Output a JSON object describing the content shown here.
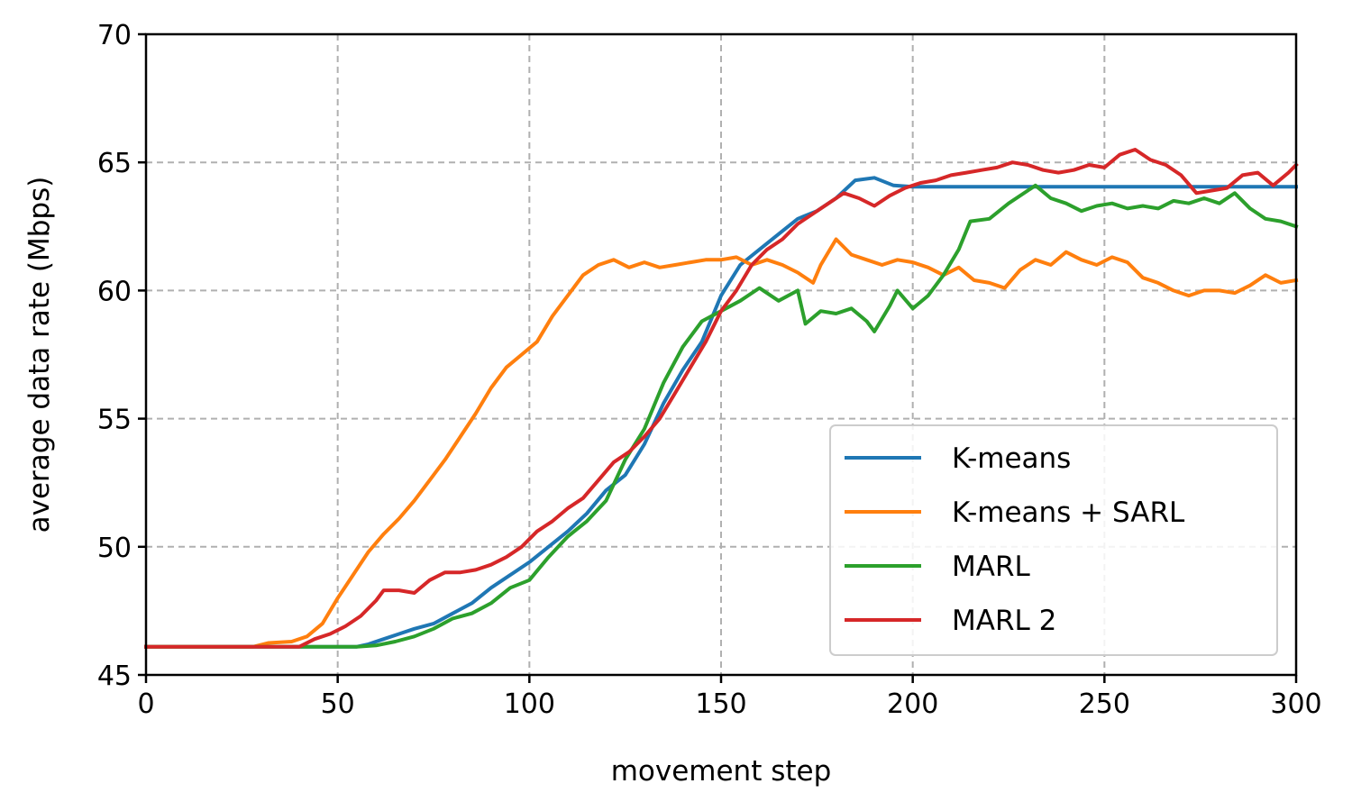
{
  "chart_data": {
    "type": "line",
    "title": "",
    "xlabel": "movement step",
    "ylabel": "average data rate (Mbps)",
    "xlim": [
      0,
      300
    ],
    "ylim": [
      45,
      70
    ],
    "xticks": [
      0,
      50,
      100,
      150,
      200,
      250,
      300
    ],
    "yticks": [
      45,
      50,
      55,
      60,
      65,
      70
    ],
    "grid": true,
    "legend_position": "lower-right",
    "series": [
      {
        "name": "K-means",
        "color": "#1f77b4",
        "points": [
          [
            0,
            46.1
          ],
          [
            40,
            46.1
          ],
          [
            55,
            46.1
          ],
          [
            58,
            46.2
          ],
          [
            62,
            46.4
          ],
          [
            66,
            46.6
          ],
          [
            70,
            46.8
          ],
          [
            75,
            47.0
          ],
          [
            80,
            47.4
          ],
          [
            85,
            47.8
          ],
          [
            90,
            48.4
          ],
          [
            95,
            48.9
          ],
          [
            100,
            49.4
          ],
          [
            105,
            50.0
          ],
          [
            110,
            50.6
          ],
          [
            115,
            51.3
          ],
          [
            120,
            52.2
          ],
          [
            125,
            52.8
          ],
          [
            130,
            54.0
          ],
          [
            135,
            55.6
          ],
          [
            140,
            56.9
          ],
          [
            145,
            58.0
          ],
          [
            150,
            59.8
          ],
          [
            155,
            61.0
          ],
          [
            160,
            61.6
          ],
          [
            165,
            62.2
          ],
          [
            170,
            62.8
          ],
          [
            175,
            63.1
          ],
          [
            180,
            63.6
          ],
          [
            185,
            64.3
          ],
          [
            190,
            64.4
          ],
          [
            195,
            64.1
          ],
          [
            200,
            64.05
          ],
          [
            300,
            64.05
          ]
        ]
      },
      {
        "name": "K-means + SARL",
        "color": "#ff7f0e",
        "points": [
          [
            0,
            46.1
          ],
          [
            28,
            46.1
          ],
          [
            32,
            46.25
          ],
          [
            38,
            46.3
          ],
          [
            42,
            46.5
          ],
          [
            46,
            47.0
          ],
          [
            50,
            48.0
          ],
          [
            54,
            48.9
          ],
          [
            58,
            49.8
          ],
          [
            62,
            50.5
          ],
          [
            66,
            51.1
          ],
          [
            70,
            51.8
          ],
          [
            74,
            52.6
          ],
          [
            78,
            53.4
          ],
          [
            82,
            54.3
          ],
          [
            86,
            55.2
          ],
          [
            90,
            56.2
          ],
          [
            94,
            57.0
          ],
          [
            98,
            57.5
          ],
          [
            102,
            58.0
          ],
          [
            106,
            59.0
          ],
          [
            110,
            59.8
          ],
          [
            114,
            60.6
          ],
          [
            118,
            61.0
          ],
          [
            122,
            61.2
          ],
          [
            126,
            60.9
          ],
          [
            130,
            61.1
          ],
          [
            134,
            60.9
          ],
          [
            138,
            61.0
          ],
          [
            142,
            61.1
          ],
          [
            146,
            61.2
          ],
          [
            150,
            61.2
          ],
          [
            154,
            61.3
          ],
          [
            158,
            61.0
          ],
          [
            162,
            61.2
          ],
          [
            166,
            61.0
          ],
          [
            170,
            60.7
          ],
          [
            174,
            60.3
          ],
          [
            176,
            61.0
          ],
          [
            180,
            62.0
          ],
          [
            184,
            61.4
          ],
          [
            188,
            61.2
          ],
          [
            192,
            61.0
          ],
          [
            196,
            61.2
          ],
          [
            200,
            61.1
          ],
          [
            204,
            60.9
          ],
          [
            208,
            60.6
          ],
          [
            212,
            60.9
          ],
          [
            216,
            60.4
          ],
          [
            220,
            60.3
          ],
          [
            224,
            60.1
          ],
          [
            228,
            60.8
          ],
          [
            232,
            61.2
          ],
          [
            236,
            61.0
          ],
          [
            240,
            61.5
          ],
          [
            244,
            61.2
          ],
          [
            248,
            61.0
          ],
          [
            252,
            61.3
          ],
          [
            256,
            61.1
          ],
          [
            260,
            60.5
          ],
          [
            264,
            60.3
          ],
          [
            268,
            60.0
          ],
          [
            272,
            59.8
          ],
          [
            276,
            60.0
          ],
          [
            280,
            60.0
          ],
          [
            284,
            59.9
          ],
          [
            288,
            60.2
          ],
          [
            292,
            60.6
          ],
          [
            296,
            60.3
          ],
          [
            300,
            60.4
          ]
        ]
      },
      {
        "name": "MARL",
        "color": "#2ca02c",
        "points": [
          [
            0,
            46.1
          ],
          [
            55,
            46.1
          ],
          [
            60,
            46.15
          ],
          [
            65,
            46.3
          ],
          [
            70,
            46.5
          ],
          [
            75,
            46.8
          ],
          [
            80,
            47.2
          ],
          [
            85,
            47.4
          ],
          [
            90,
            47.8
          ],
          [
            95,
            48.4
          ],
          [
            100,
            48.7
          ],
          [
            105,
            49.6
          ],
          [
            110,
            50.4
          ],
          [
            115,
            51.0
          ],
          [
            120,
            51.8
          ],
          [
            125,
            53.4
          ],
          [
            130,
            54.6
          ],
          [
            135,
            56.4
          ],
          [
            140,
            57.8
          ],
          [
            145,
            58.8
          ],
          [
            150,
            59.2
          ],
          [
            155,
            59.6
          ],
          [
            160,
            60.1
          ],
          [
            165,
            59.6
          ],
          [
            170,
            60.0
          ],
          [
            172,
            58.7
          ],
          [
            176,
            59.2
          ],
          [
            180,
            59.1
          ],
          [
            184,
            59.3
          ],
          [
            188,
            58.8
          ],
          [
            190,
            58.4
          ],
          [
            194,
            59.4
          ],
          [
            196,
            60.0
          ],
          [
            200,
            59.3
          ],
          [
            204,
            59.8
          ],
          [
            208,
            60.6
          ],
          [
            212,
            61.6
          ],
          [
            215,
            62.7
          ],
          [
            220,
            62.8
          ],
          [
            225,
            63.4
          ],
          [
            230,
            63.9
          ],
          [
            232,
            64.1
          ],
          [
            236,
            63.6
          ],
          [
            240,
            63.4
          ],
          [
            244,
            63.1
          ],
          [
            248,
            63.3
          ],
          [
            252,
            63.4
          ],
          [
            256,
            63.2
          ],
          [
            260,
            63.3
          ],
          [
            264,
            63.2
          ],
          [
            268,
            63.5
          ],
          [
            272,
            63.4
          ],
          [
            276,
            63.6
          ],
          [
            280,
            63.4
          ],
          [
            284,
            63.8
          ],
          [
            288,
            63.2
          ],
          [
            292,
            62.8
          ],
          [
            296,
            62.7
          ],
          [
            300,
            62.5
          ]
        ]
      },
      {
        "name": "MARL 2",
        "color": "#d62728",
        "points": [
          [
            0,
            46.1
          ],
          [
            40,
            46.1
          ],
          [
            44,
            46.4
          ],
          [
            48,
            46.6
          ],
          [
            52,
            46.9
          ],
          [
            56,
            47.3
          ],
          [
            60,
            47.9
          ],
          [
            62,
            48.3
          ],
          [
            66,
            48.3
          ],
          [
            70,
            48.2
          ],
          [
            74,
            48.7
          ],
          [
            78,
            49.0
          ],
          [
            82,
            49.0
          ],
          [
            86,
            49.1
          ],
          [
            90,
            49.3
          ],
          [
            94,
            49.6
          ],
          [
            98,
            50.0
          ],
          [
            102,
            50.6
          ],
          [
            106,
            51.0
          ],
          [
            110,
            51.5
          ],
          [
            114,
            51.9
          ],
          [
            118,
            52.6
          ],
          [
            122,
            53.3
          ],
          [
            126,
            53.7
          ],
          [
            130,
            54.3
          ],
          [
            134,
            55.0
          ],
          [
            138,
            56.0
          ],
          [
            142,
            57.0
          ],
          [
            146,
            58.0
          ],
          [
            150,
            59.2
          ],
          [
            154,
            60.0
          ],
          [
            158,
            61.0
          ],
          [
            162,
            61.6
          ],
          [
            166,
            62.0
          ],
          [
            170,
            62.6
          ],
          [
            174,
            63.0
          ],
          [
            178,
            63.4
          ],
          [
            182,
            63.8
          ],
          [
            186,
            63.6
          ],
          [
            190,
            63.3
          ],
          [
            194,
            63.7
          ],
          [
            198,
            64.0
          ],
          [
            202,
            64.2
          ],
          [
            206,
            64.3
          ],
          [
            210,
            64.5
          ],
          [
            214,
            64.6
          ],
          [
            218,
            64.7
          ],
          [
            222,
            64.8
          ],
          [
            226,
            65.0
          ],
          [
            230,
            64.9
          ],
          [
            234,
            64.7
          ],
          [
            238,
            64.6
          ],
          [
            242,
            64.7
          ],
          [
            246,
            64.9
          ],
          [
            250,
            64.8
          ],
          [
            254,
            65.3
          ],
          [
            258,
            65.5
          ],
          [
            262,
            65.1
          ],
          [
            266,
            64.9
          ],
          [
            270,
            64.5
          ],
          [
            274,
            63.8
          ],
          [
            278,
            63.9
          ],
          [
            282,
            64.0
          ],
          [
            286,
            64.5
          ],
          [
            290,
            64.6
          ],
          [
            294,
            64.1
          ],
          [
            298,
            64.6
          ],
          [
            300,
            64.9
          ]
        ]
      }
    ]
  }
}
